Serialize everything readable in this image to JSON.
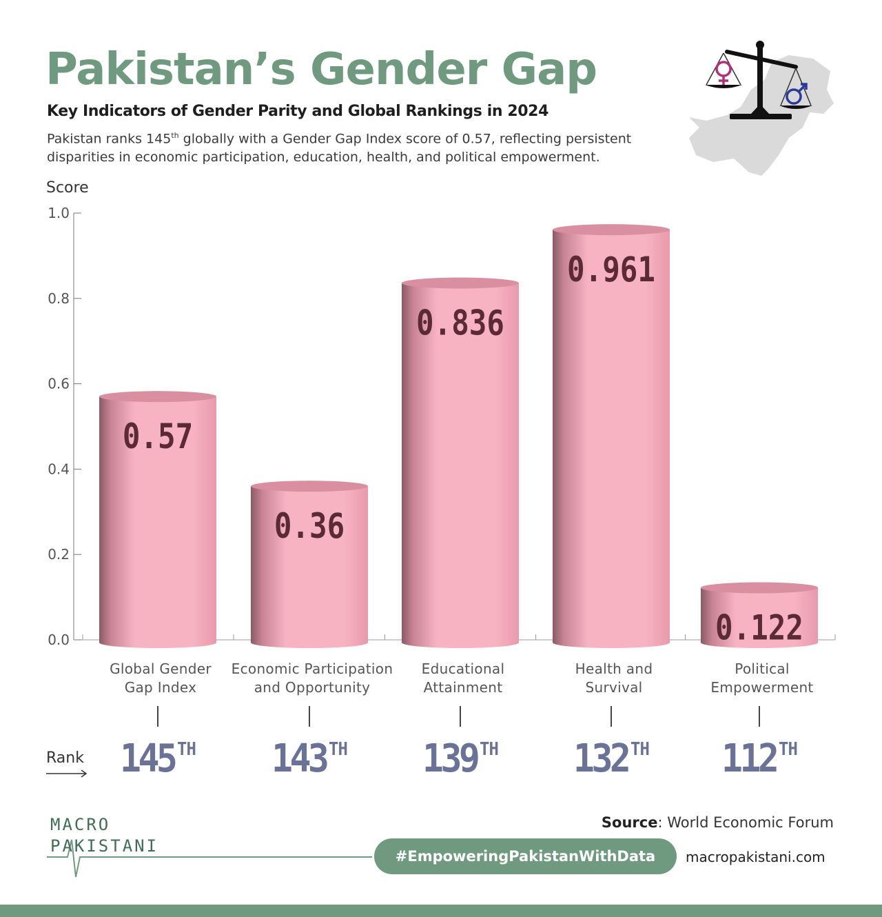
{
  "header": {
    "title": "Pakistan’s Gender Gap",
    "subtitle": "Key Indicators of Gender Parity and Global Rankings in 2024",
    "desc_part1": "Pakistan ranks 145",
    "desc_sup": "th",
    "desc_part2": " globally with a Gender Gap Index score of 0.57, reflecting persistent disparities in economic participation, education, health, and political empowerment."
  },
  "chart_data": {
    "type": "bar",
    "title": "Pakistan’s Gender Gap",
    "ylabel": "Score",
    "ylim": [
      0,
      1.0
    ],
    "yticks": [
      "0.0",
      "0.2",
      "0.4",
      "0.6",
      "0.8",
      "1.0"
    ],
    "categories": [
      [
        "Global Gender",
        "Gap Index"
      ],
      [
        "Economic Participation",
        "and Opportunity"
      ],
      [
        "Educational",
        "Attainment"
      ],
      [
        "Health and",
        "Survival"
      ],
      [
        "Political",
        "Empowerment"
      ]
    ],
    "values": [
      0.57,
      0.36,
      0.836,
      0.961,
      0.122
    ],
    "value_labels": [
      "0.57",
      "0.36",
      "0.836",
      "0.961",
      "0.122"
    ],
    "grid": false
  },
  "ranks": {
    "caption": "Rank",
    "values": [
      "145",
      "143",
      "139",
      "132",
      "112"
    ],
    "suffix": "TH"
  },
  "footer": {
    "logo_line1": "MACRO",
    "logo_line2": "PAKISTANI",
    "source_label": "Source",
    "source_text": ": World Economic Forum",
    "hashtag": "#EmpoweringPakistanWithData",
    "website": "macropakistani.com"
  },
  "colors": {
    "accent": "#6f9a80",
    "bar": "#f7b3c2",
    "bar_shade": "#8a5a66",
    "value_text": "#5a2a35",
    "rank_text": "#6b7298",
    "female_symbol": "#b0307a",
    "male_symbol": "#2a3a9a"
  },
  "icons": [
    "scales-icon",
    "female-symbol-icon",
    "male-symbol-icon",
    "pakistan-map-icon",
    "arrow-right-icon",
    "heartbeat-line-icon"
  ]
}
